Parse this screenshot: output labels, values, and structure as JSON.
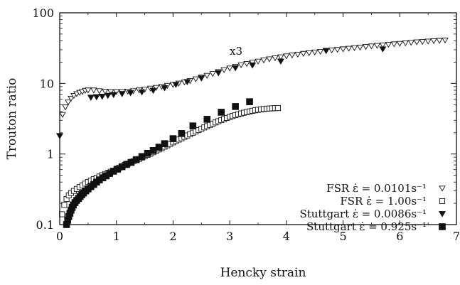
{
  "chart_data": {
    "type": "scatter",
    "xlabel": "Hencky strain",
    "ylabel": "Trouton ratio",
    "xlim": [
      0,
      7
    ],
    "ylim": [
      0.1,
      100
    ],
    "yscale": "log",
    "x_ticks": [
      0,
      1,
      2,
      3,
      4,
      5,
      6,
      7
    ],
    "x_tick_labels": [
      "0",
      "1",
      "2",
      "3",
      "4",
      "5",
      "6",
      "7"
    ],
    "y_ticks": [
      0.1,
      1,
      10,
      100
    ],
    "y_tick_labels": [
      "0.1",
      "1",
      "10",
      "100"
    ],
    "legend_position": "bottom-right",
    "annotations": [
      {
        "text": "x3",
        "x": 3.0,
        "y": 30
      }
    ],
    "series": [
      {
        "name": "FSR ε̇ = 0.0101s⁻¹",
        "marker": "triangle-down-open",
        "points": [
          [
            0.05,
            3.6
          ],
          [
            0.1,
            4.6
          ],
          [
            0.15,
            5.4
          ],
          [
            0.2,
            6.1
          ],
          [
            0.25,
            6.7
          ],
          [
            0.3,
            7.1
          ],
          [
            0.35,
            7.4
          ],
          [
            0.4,
            7.6
          ],
          [
            0.45,
            7.9
          ],
          [
            0.5,
            8.0
          ],
          [
            0.6,
            8.0
          ],
          [
            0.7,
            7.8
          ],
          [
            0.8,
            7.7
          ],
          [
            0.9,
            7.6
          ],
          [
            1.0,
            7.6
          ],
          [
            1.1,
            7.6
          ],
          [
            1.2,
            7.7
          ],
          [
            1.3,
            7.8
          ],
          [
            1.4,
            8.0
          ],
          [
            1.5,
            8.2
          ],
          [
            1.6,
            8.5
          ],
          [
            1.7,
            8.7
          ],
          [
            1.8,
            9.0
          ],
          [
            1.9,
            9.3
          ],
          [
            2.0,
            9.6
          ],
          [
            2.1,
            10.0
          ],
          [
            2.2,
            10.4
          ],
          [
            2.3,
            10.9
          ],
          [
            2.4,
            11.5
          ],
          [
            2.5,
            12.2
          ],
          [
            2.6,
            12.9
          ],
          [
            2.7,
            13.7
          ],
          [
            2.8,
            14.6
          ],
          [
            2.9,
            15.5
          ],
          [
            3.0,
            16.4
          ],
          [
            3.1,
            17.3
          ],
          [
            3.2,
            18.2
          ],
          [
            3.3,
            19.0
          ],
          [
            3.4,
            19.8
          ],
          [
            3.5,
            20.5
          ],
          [
            3.6,
            21.3
          ],
          [
            3.7,
            22.1
          ],
          [
            3.8,
            22.9
          ],
          [
            3.9,
            23.6
          ],
          [
            4.0,
            24.3
          ],
          [
            4.1,
            25.0
          ],
          [
            4.2,
            25.7
          ],
          [
            4.3,
            26.4
          ],
          [
            4.4,
            27.0
          ],
          [
            4.5,
            27.6
          ],
          [
            4.6,
            28.2
          ],
          [
            4.7,
            28.8
          ],
          [
            4.8,
            29.4
          ],
          [
            4.9,
            30.0
          ],
          [
            5.0,
            30.6
          ],
          [
            5.1,
            31.2
          ],
          [
            5.2,
            31.8
          ],
          [
            5.3,
            32.4
          ],
          [
            5.4,
            33.0
          ],
          [
            5.5,
            33.6
          ],
          [
            5.6,
            34.2
          ],
          [
            5.7,
            34.8
          ],
          [
            5.8,
            35.4
          ],
          [
            5.9,
            36.0
          ],
          [
            6.0,
            36.6
          ],
          [
            6.1,
            37.2
          ],
          [
            6.2,
            37.8
          ],
          [
            6.3,
            38.4
          ],
          [
            6.4,
            38.9
          ],
          [
            6.5,
            39.4
          ],
          [
            6.6,
            39.9
          ],
          [
            6.7,
            40.3
          ],
          [
            6.8,
            40.8
          ]
        ]
      },
      {
        "name": "FSR ε̇ = 1.00s⁻¹",
        "marker": "square-open",
        "points": [
          [
            0.04,
            0.14
          ],
          [
            0.08,
            0.19
          ],
          [
            0.12,
            0.23
          ],
          [
            0.16,
            0.26
          ],
          [
            0.2,
            0.28
          ],
          [
            0.25,
            0.3
          ],
          [
            0.3,
            0.32
          ],
          [
            0.35,
            0.34
          ],
          [
            0.4,
            0.36
          ],
          [
            0.45,
            0.38
          ],
          [
            0.5,
            0.4
          ],
          [
            0.55,
            0.42
          ],
          [
            0.6,
            0.44
          ],
          [
            0.65,
            0.46
          ],
          [
            0.7,
            0.48
          ],
          [
            0.75,
            0.5
          ],
          [
            0.8,
            0.52
          ],
          [
            0.85,
            0.54
          ],
          [
            0.9,
            0.56
          ],
          [
            0.95,
            0.58
          ],
          [
            1.0,
            0.61
          ],
          [
            1.05,
            0.64
          ],
          [
            1.1,
            0.67
          ],
          [
            1.15,
            0.7
          ],
          [
            1.2,
            0.73
          ],
          [
            1.25,
            0.76
          ],
          [
            1.3,
            0.79
          ],
          [
            1.35,
            0.82
          ],
          [
            1.4,
            0.85
          ],
          [
            1.45,
            0.89
          ],
          [
            1.5,
            0.93
          ],
          [
            1.55,
            0.97
          ],
          [
            1.6,
            1.01
          ],
          [
            1.65,
            1.06
          ],
          [
            1.7,
            1.11
          ],
          [
            1.75,
            1.16
          ],
          [
            1.8,
            1.21
          ],
          [
            1.85,
            1.27
          ],
          [
            1.9,
            1.33
          ],
          [
            1.95,
            1.39
          ],
          [
            2.0,
            1.46
          ],
          [
            2.05,
            1.53
          ],
          [
            2.1,
            1.6
          ],
          [
            2.15,
            1.67
          ],
          [
            2.2,
            1.75
          ],
          [
            2.25,
            1.83
          ],
          [
            2.3,
            1.91
          ],
          [
            2.35,
            2.0
          ],
          [
            2.4,
            2.09
          ],
          [
            2.45,
            2.18
          ],
          [
            2.5,
            2.28
          ],
          [
            2.55,
            2.38
          ],
          [
            2.6,
            2.48
          ],
          [
            2.65,
            2.58
          ],
          [
            2.7,
            2.69
          ],
          [
            2.75,
            2.8
          ],
          [
            2.8,
            2.91
          ],
          [
            2.85,
            3.02
          ],
          [
            2.9,
            3.13
          ],
          [
            2.95,
            3.24
          ],
          [
            3.0,
            3.35
          ],
          [
            3.05,
            3.45
          ],
          [
            3.1,
            3.55
          ],
          [
            3.15,
            3.65
          ],
          [
            3.2,
            3.75
          ],
          [
            3.25,
            3.84
          ],
          [
            3.3,
            3.93
          ],
          [
            3.35,
            4.01
          ],
          [
            3.4,
            4.09
          ],
          [
            3.45,
            4.16
          ],
          [
            3.5,
            4.23
          ],
          [
            3.55,
            4.29
          ],
          [
            3.6,
            4.34
          ],
          [
            3.65,
            4.38
          ],
          [
            3.7,
            4.41
          ],
          [
            3.75,
            4.44
          ],
          [
            3.8,
            4.46
          ],
          [
            3.85,
            4.47
          ]
        ]
      },
      {
        "name": "Stuttgart ε̇ = 0.0086s⁻¹",
        "marker": "triangle-down-filled",
        "points": [
          [
            0.0,
            1.8
          ],
          [
            0.55,
            6.3
          ],
          [
            0.65,
            6.4
          ],
          [
            0.75,
            6.5
          ],
          [
            0.85,
            6.7
          ],
          [
            0.95,
            6.9
          ],
          [
            1.1,
            7.1
          ],
          [
            1.25,
            7.3
          ],
          [
            1.45,
            7.5
          ],
          [
            1.65,
            7.9
          ],
          [
            1.85,
            8.6
          ],
          [
            2.05,
            9.6
          ],
          [
            2.25,
            10.5
          ],
          [
            2.5,
            11.8
          ],
          [
            2.8,
            14.0
          ],
          [
            3.1,
            16.5
          ],
          [
            3.4,
            18.0
          ],
          [
            3.9,
            20.5
          ],
          [
            4.7,
            29.0
          ],
          [
            5.7,
            30.5
          ]
        ]
      },
      {
        "name": "Stuttgart ε̇ = 0.925s⁻¹",
        "marker": "square-filled",
        "points": [
          [
            0.12,
            0.1
          ],
          [
            0.14,
            0.115
          ],
          [
            0.16,
            0.13
          ],
          [
            0.18,
            0.145
          ],
          [
            0.2,
            0.16
          ],
          [
            0.22,
            0.175
          ],
          [
            0.24,
            0.19
          ],
          [
            0.27,
            0.205
          ],
          [
            0.3,
            0.22
          ],
          [
            0.33,
            0.235
          ],
          [
            0.36,
            0.25
          ],
          [
            0.39,
            0.265
          ],
          [
            0.42,
            0.28
          ],
          [
            0.46,
            0.3
          ],
          [
            0.5,
            0.32
          ],
          [
            0.55,
            0.345
          ],
          [
            0.6,
            0.37
          ],
          [
            0.65,
            0.4
          ],
          [
            0.7,
            0.43
          ],
          [
            0.76,
            0.46
          ],
          [
            0.82,
            0.49
          ],
          [
            0.88,
            0.53
          ],
          [
            0.95,
            0.57
          ],
          [
            1.02,
            0.61
          ],
          [
            1.1,
            0.66
          ],
          [
            1.18,
            0.71
          ],
          [
            1.26,
            0.76
          ],
          [
            1.35,
            0.83
          ],
          [
            1.45,
            0.92
          ],
          [
            1.55,
            1.02
          ],
          [
            1.65,
            1.12
          ],
          [
            1.75,
            1.25
          ],
          [
            1.85,
            1.4
          ],
          [
            2.0,
            1.65
          ],
          [
            2.15,
            1.95
          ],
          [
            2.35,
            2.5
          ],
          [
            2.6,
            3.1
          ],
          [
            2.85,
            3.9
          ],
          [
            3.1,
            4.7
          ],
          [
            3.35,
            5.5
          ]
        ]
      }
    ]
  }
}
